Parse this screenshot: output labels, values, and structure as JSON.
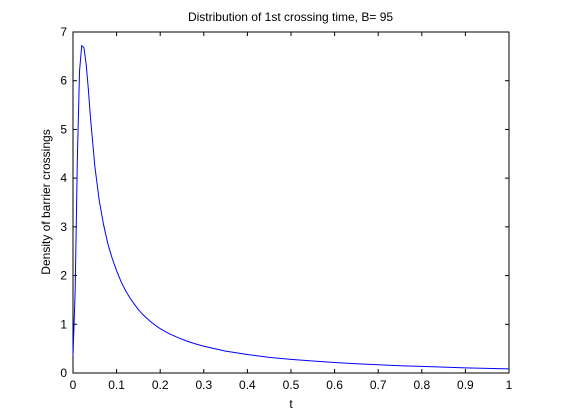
{
  "chart_data": {
    "type": "line",
    "title": "Distribution of 1st crossing time, B= 95",
    "xlabel": "t",
    "ylabel": "Density of barrier crossings",
    "xlim": [
      0,
      1
    ],
    "ylim": [
      0,
      7
    ],
    "xticks": [
      "0",
      "0.1",
      "0.2",
      "0.3",
      "0.4",
      "0.5",
      "0.6",
      "0.7",
      "0.8",
      "0.9",
      "1"
    ],
    "yticks": [
      "0",
      "1",
      "2",
      "3",
      "4",
      "5",
      "6",
      "7"
    ],
    "grid": false,
    "legend": "none",
    "series": [
      {
        "color": "#0000ff",
        "x": [
          0.0,
          0.005,
          0.01,
          0.015,
          0.02,
          0.025,
          0.03,
          0.035,
          0.04,
          0.045,
          0.05,
          0.055,
          0.06,
          0.07,
          0.08,
          0.09,
          0.1,
          0.11,
          0.12,
          0.13,
          0.14,
          0.15,
          0.16,
          0.17,
          0.18,
          0.19,
          0.2,
          0.22,
          0.24,
          0.26,
          0.28,
          0.3,
          0.35,
          0.4,
          0.45,
          0.5,
          0.55,
          0.6,
          0.65,
          0.7,
          0.75,
          0.8,
          0.85,
          0.9,
          0.95,
          1.0
        ],
        "y": [
          0.35,
          1.7,
          4.4,
          6.2,
          6.72,
          6.68,
          6.35,
          5.85,
          5.25,
          4.75,
          4.25,
          3.9,
          3.55,
          3.05,
          2.65,
          2.35,
          2.1,
          1.88,
          1.7,
          1.55,
          1.42,
          1.3,
          1.2,
          1.12,
          1.04,
          0.97,
          0.91,
          0.81,
          0.73,
          0.66,
          0.6,
          0.55,
          0.45,
          0.38,
          0.32,
          0.28,
          0.245,
          0.215,
          0.19,
          0.17,
          0.15,
          0.135,
          0.12,
          0.105,
          0.095,
          0.085
        ]
      }
    ]
  }
}
